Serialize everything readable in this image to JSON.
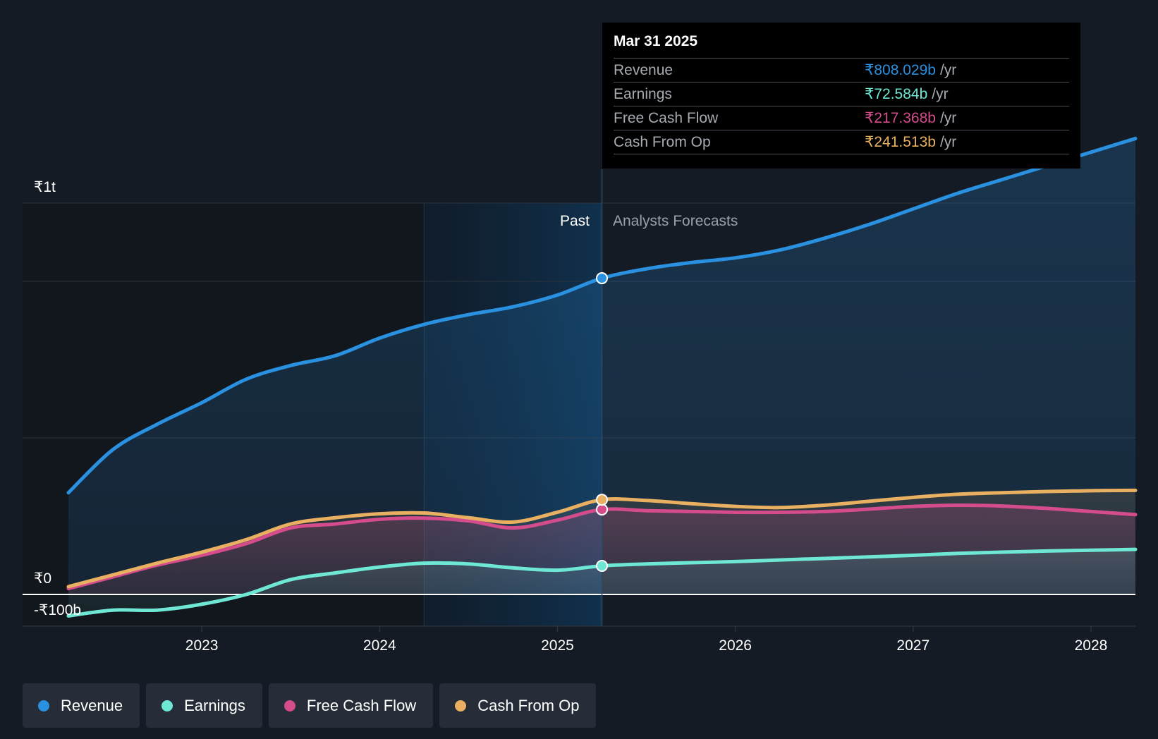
{
  "tooltip": {
    "date": "Mar 31 2025",
    "rows": [
      {
        "label": "Revenue",
        "value": "₹808.029b",
        "unit": "/yr",
        "color": "#2a90e0"
      },
      {
        "label": "Earnings",
        "value": "₹72.584b",
        "unit": "/yr",
        "color": "#6ee8d5"
      },
      {
        "label": "Free Cash Flow",
        "value": "₹217.368b",
        "unit": "/yr",
        "color": "#d44c8c"
      },
      {
        "label": "Cash From Op",
        "value": "₹241.513b",
        "unit": "/yr",
        "color": "#e9b062"
      }
    ]
  },
  "legend": [
    {
      "label": "Revenue",
      "color": "#2a90e0"
    },
    {
      "label": "Earnings",
      "color": "#6ee8d5"
    },
    {
      "label": "Free Cash Flow",
      "color": "#d44c8c"
    },
    {
      "label": "Cash From Op",
      "color": "#e9b062"
    }
  ],
  "chart_data": {
    "type": "line",
    "y_tick_labels": [
      "₹1t",
      "₹0",
      "-₹100b"
    ],
    "ylim": [
      -100,
      1200
    ],
    "xlim": [
      2022.25,
      2028.25
    ],
    "x_tick_labels": [
      "2023",
      "2024",
      "2025",
      "2026",
      "2027",
      "2028"
    ],
    "x_tick_values": [
      2023,
      2024,
      2025,
      2026,
      2027,
      2028
    ],
    "past_label": "Past",
    "forecast_label": "Analysts Forecasts",
    "past_shade_start": 2024.25,
    "divider_x": 2025.25,
    "series": [
      {
        "name": "Revenue",
        "color": "#2a90e0",
        "x": [
          2022.25,
          2022.5,
          2022.75,
          2023.0,
          2023.25,
          2023.5,
          2023.75,
          2024.0,
          2024.25,
          2024.5,
          2024.75,
          2025.0,
          2025.25,
          2025.5,
          2025.75,
          2026.0,
          2026.25,
          2026.5,
          2026.75,
          2027.0,
          2027.25,
          2027.5,
          2027.75,
          2028.0,
          2028.25
        ],
        "values": [
          260,
          370,
          435,
          490,
          550,
          585,
          610,
          655,
          690,
          715,
          735,
          765,
          808,
          832,
          848,
          860,
          880,
          910,
          945,
          985,
          1025,
          1060,
          1095,
          1130,
          1165
        ]
      },
      {
        "name": "Earnings",
        "color": "#6ee8d5",
        "x": [
          2022.25,
          2022.5,
          2022.75,
          2023.0,
          2023.25,
          2023.5,
          2023.75,
          2024.0,
          2024.25,
          2024.5,
          2024.75,
          2025.0,
          2025.25,
          2025.5,
          2025.75,
          2026.0,
          2026.25,
          2026.5,
          2026.75,
          2027.0,
          2027.25,
          2027.5,
          2027.75,
          2028.0,
          2028.25
        ],
        "values": [
          -55,
          -40,
          -40,
          -25,
          0,
          38,
          55,
          70,
          80,
          78,
          68,
          62,
          73,
          78,
          81,
          84,
          88,
          92,
          96,
          100,
          105,
          108,
          111,
          113,
          115
        ]
      },
      {
        "name": "Free Cash Flow",
        "color": "#d44c8c",
        "x": [
          2022.25,
          2022.5,
          2022.75,
          2023.0,
          2023.25,
          2023.5,
          2023.75,
          2024.0,
          2024.25,
          2024.5,
          2024.75,
          2025.0,
          2025.25,
          2025.5,
          2025.75,
          2026.0,
          2026.25,
          2026.5,
          2026.75,
          2027.0,
          2027.25,
          2027.5,
          2027.75,
          2028.0,
          2028.25
        ],
        "values": [
          15,
          45,
          75,
          100,
          130,
          170,
          180,
          192,
          195,
          188,
          170,
          190,
          217,
          214,
          212,
          210,
          210,
          212,
          218,
          225,
          228,
          226,
          220,
          212,
          204
        ]
      },
      {
        "name": "Cash From Op",
        "color": "#e9b062",
        "x": [
          2022.25,
          2022.5,
          2022.75,
          2023.0,
          2023.25,
          2023.5,
          2023.75,
          2024.0,
          2024.25,
          2024.5,
          2024.75,
          2025.0,
          2025.25,
          2025.5,
          2025.75,
          2026.0,
          2026.25,
          2026.5,
          2026.75,
          2027.0,
          2027.25,
          2027.5,
          2027.75,
          2028.0,
          2028.25
        ],
        "values": [
          20,
          50,
          80,
          108,
          140,
          180,
          196,
          206,
          208,
          196,
          185,
          210,
          242,
          240,
          232,
          225,
          222,
          228,
          238,
          248,
          256,
          260,
          263,
          265,
          266
        ]
      }
    ],
    "highlight_x": 2025.25
  }
}
